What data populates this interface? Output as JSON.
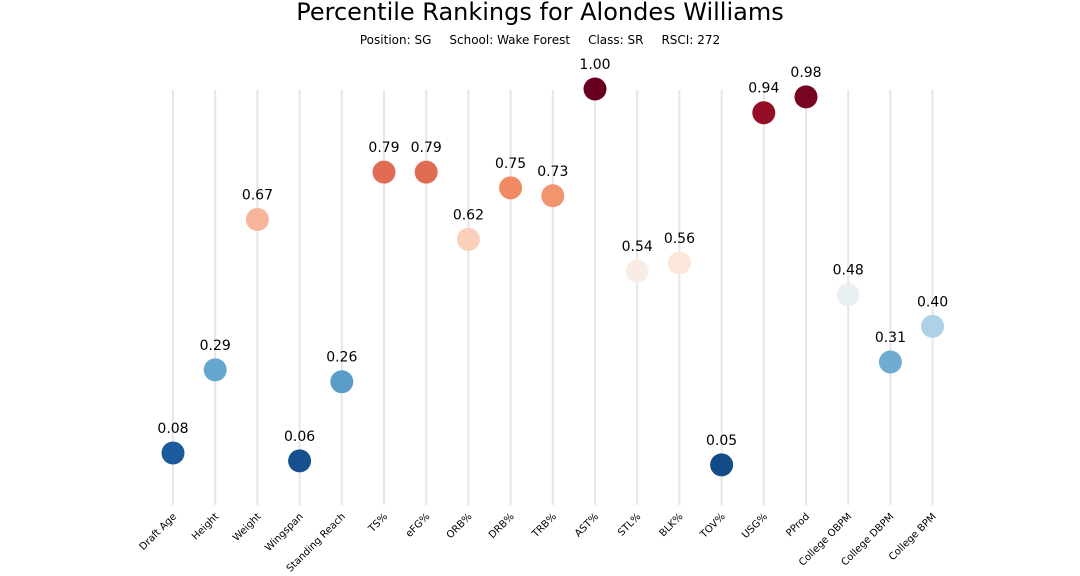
{
  "title": "Percentile Rankings for Alondes Williams",
  "subtitle": {
    "position": "Position: SG",
    "school": "School: Wake Forest",
    "class": "Class: SR",
    "rsci": "RSCI: 272"
  },
  "chart_data": {
    "type": "scatter",
    "title": "Percentile Rankings for Alondes Williams",
    "categories": [
      "Draft Age",
      "Height",
      "Weight",
      "Wingspan",
      "Standing Reach",
      "TS%",
      "eFG%",
      "ORB%",
      "DRB%",
      "TRB%",
      "AST%",
      "STL%",
      "BLK%",
      "TOV%",
      "USG%",
      "PProd",
      "College OBPM",
      "College DBPM",
      "College BPM"
    ],
    "values": [
      0.08,
      0.29,
      0.67,
      0.06,
      0.26,
      0.79,
      0.79,
      0.62,
      0.75,
      0.73,
      1.0,
      0.54,
      0.56,
      0.05,
      0.94,
      0.98,
      0.48,
      0.31,
      0.4
    ],
    "value_labels": [
      "0.08",
      "0.29",
      "0.67",
      "0.06",
      "0.26",
      "0.79",
      "0.79",
      "0.62",
      "0.75",
      "0.73",
      "1.00",
      "0.54",
      "0.56",
      "0.05",
      "0.94",
      "0.98",
      "0.48",
      "0.31",
      "0.40"
    ],
    "ylim": [
      0,
      1
    ],
    "colormap": "diverging red-blue (high = dark red, low = dark blue)",
    "grid": "vertical lines at each category",
    "xlabel": "",
    "ylabel": ""
  }
}
